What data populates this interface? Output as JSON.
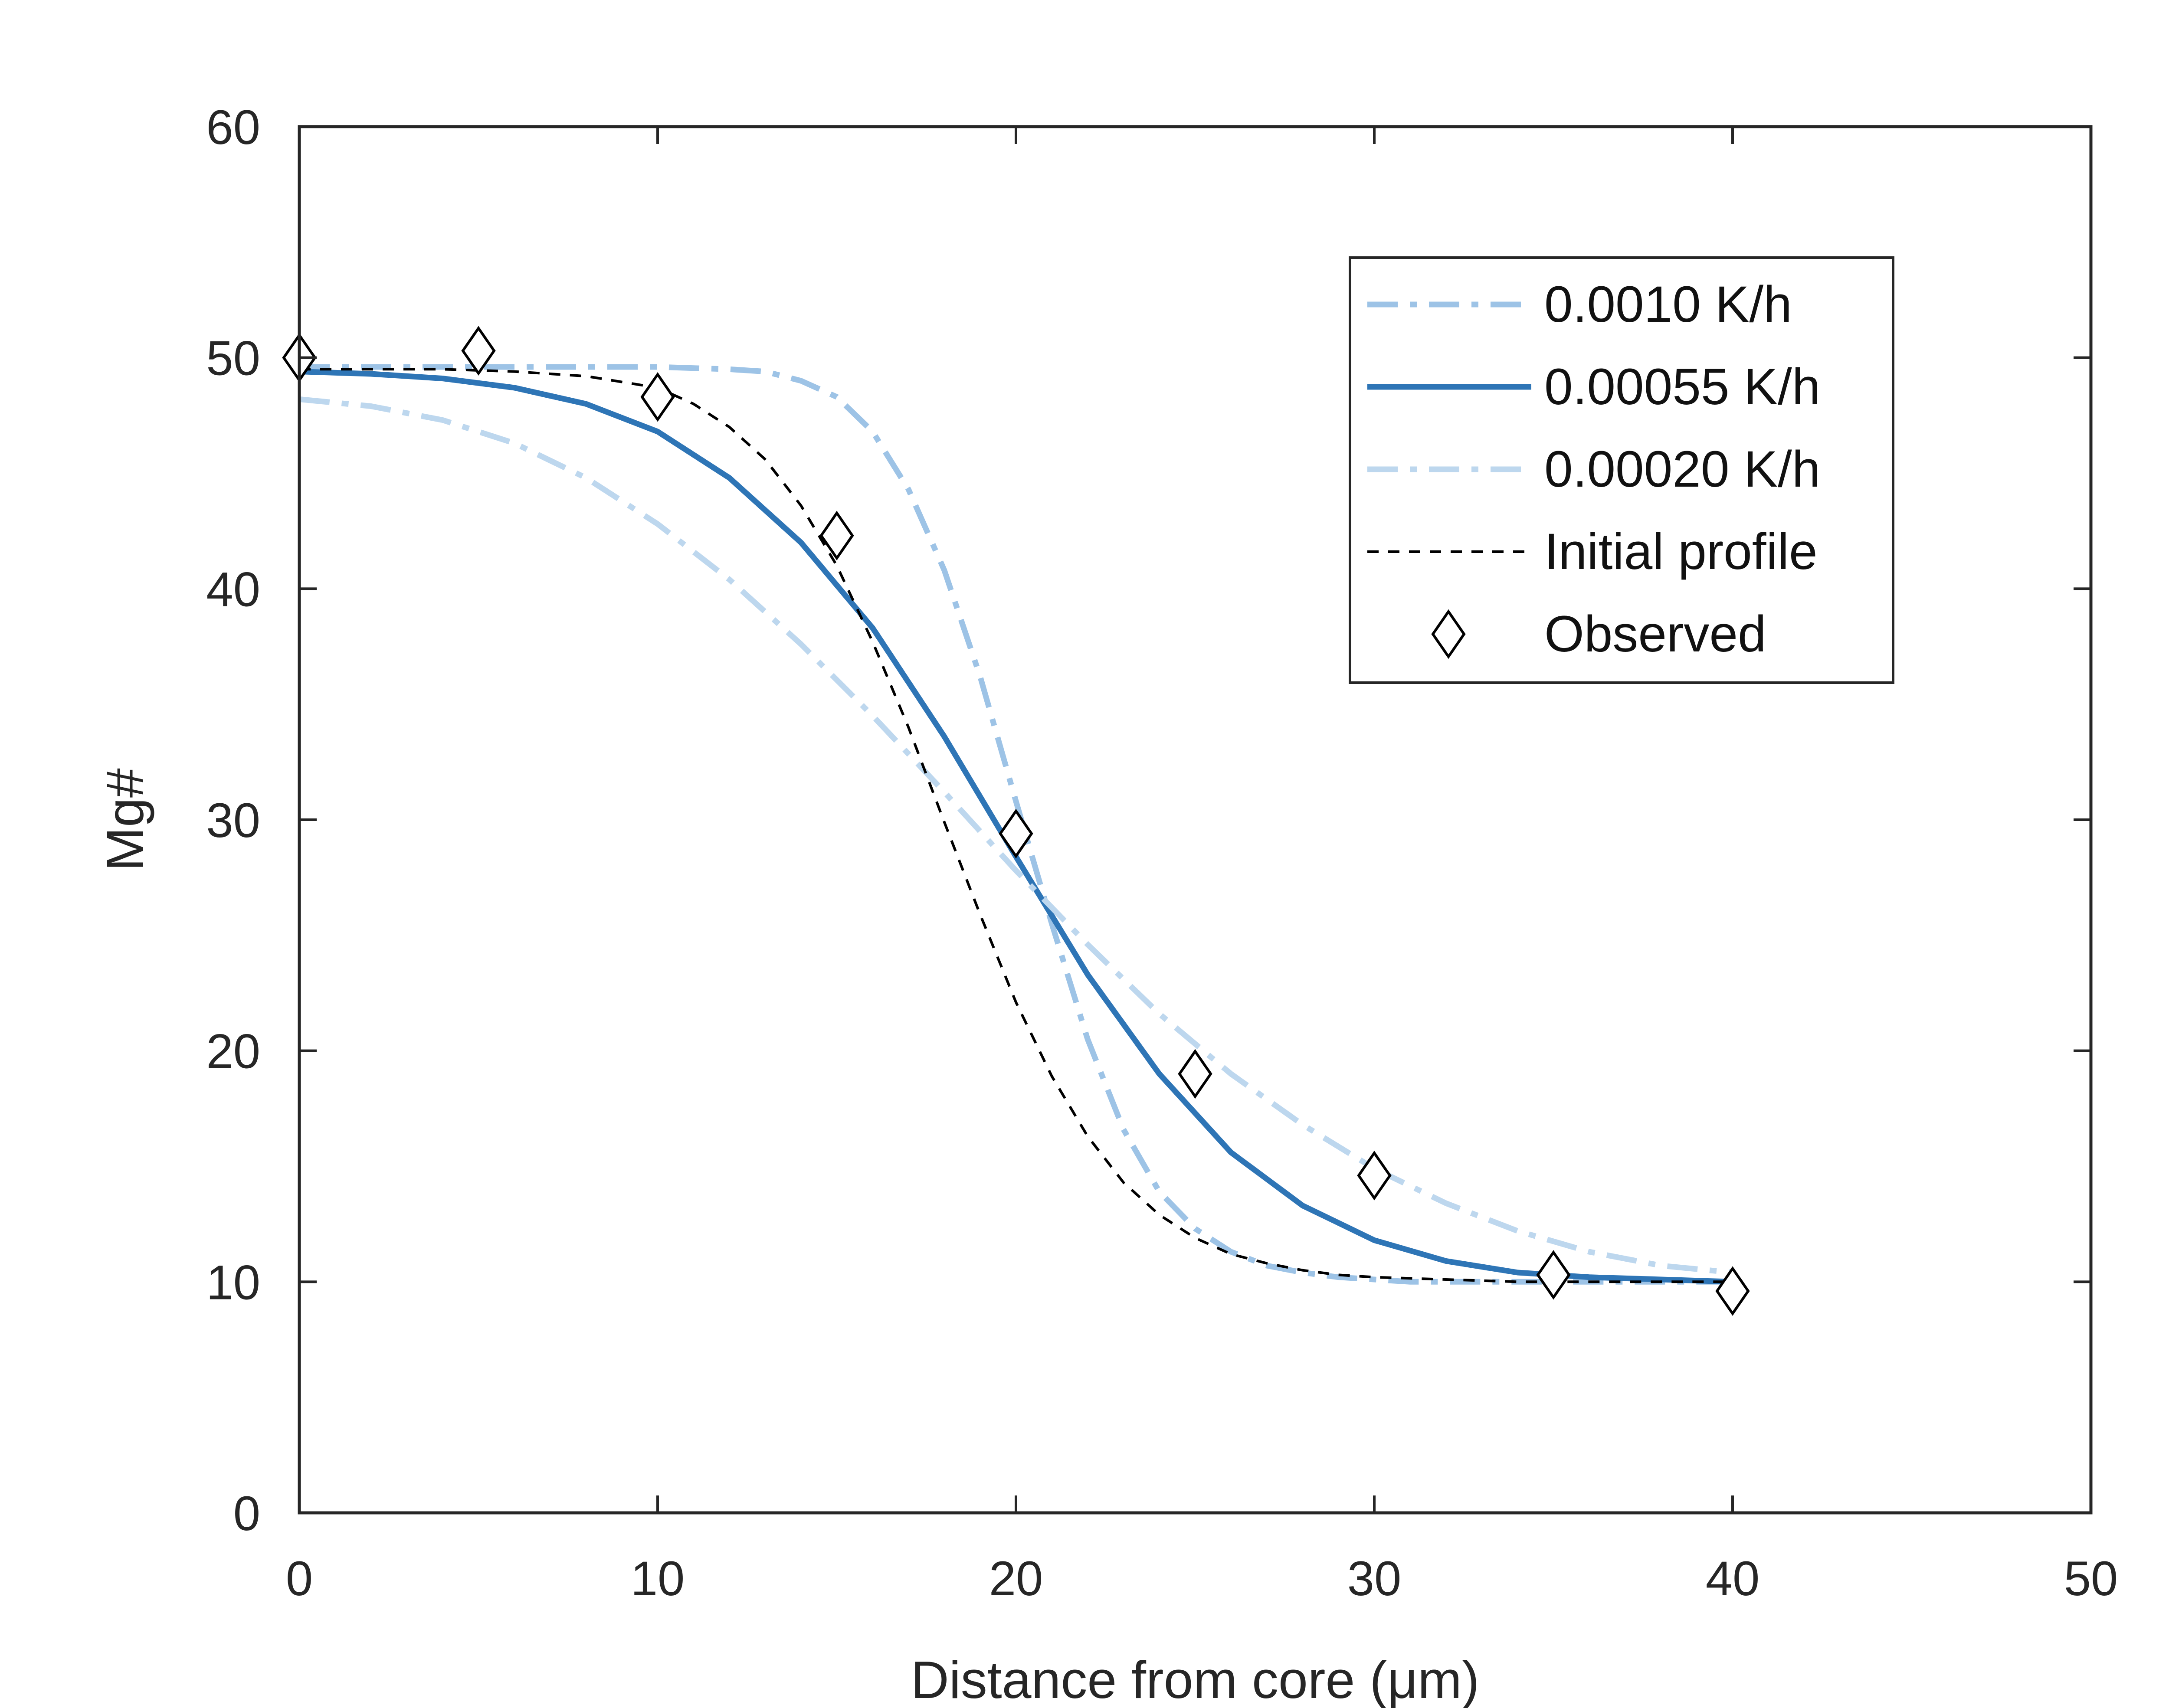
{
  "chart_data": {
    "type": "line",
    "xlabel": "Distance from core (μm)",
    "ylabel": "Mg#",
    "xlim": [
      0,
      50
    ],
    "ylim": [
      0,
      60
    ],
    "xticks": [
      0,
      10,
      20,
      30,
      40,
      50
    ],
    "yticks": [
      0,
      10,
      20,
      30,
      40,
      50,
      60
    ],
    "grid": false,
    "legend": "top-right",
    "series": [
      {
        "name": "0.0010 K/h",
        "style": "dash-dot",
        "color": "#9dc3e6",
        "x": [
          0,
          2,
          4,
          6,
          8,
          10,
          12,
          13,
          14,
          15,
          16,
          17,
          18,
          19,
          20,
          21,
          22,
          23,
          24,
          25,
          26,
          27,
          28,
          29,
          30,
          31,
          32,
          34,
          36,
          38,
          40
        ],
        "y": [
          49.6,
          49.6,
          49.6,
          49.6,
          49.6,
          49.6,
          49.5,
          49.4,
          49.0,
          48.3,
          46.8,
          44.3,
          40.8,
          36.2,
          30.8,
          25.5,
          20.5,
          16.6,
          13.9,
          12.3,
          11.3,
          10.7,
          10.4,
          10.2,
          10.1,
          10.0,
          10.0,
          10.0,
          10.0,
          10.0,
          10.0
        ]
      },
      {
        "name": "0.00055 K/h",
        "style": "solid",
        "color": "#2e75b6",
        "x": [
          0,
          2,
          4,
          6,
          8,
          10,
          12,
          14,
          16,
          18,
          20,
          22,
          24,
          26,
          28,
          30,
          32,
          34,
          36,
          38,
          40
        ],
        "y": [
          49.4,
          49.3,
          49.1,
          48.7,
          48.0,
          46.8,
          44.8,
          42.0,
          38.3,
          33.6,
          28.4,
          23.3,
          19.0,
          15.6,
          13.3,
          11.8,
          10.9,
          10.4,
          10.2,
          10.1,
          10.0
        ]
      },
      {
        "name": "0.00020 K/h",
        "style": "dash-dot",
        "color": "#bdd7ee",
        "x": [
          0,
          2,
          4,
          6,
          8,
          10,
          12,
          14,
          16,
          18,
          20,
          22,
          24,
          26,
          28,
          30,
          32,
          34,
          36,
          38,
          40
        ],
        "y": [
          48.2,
          47.9,
          47.3,
          46.3,
          44.8,
          42.8,
          40.4,
          37.6,
          34.5,
          31.2,
          27.8,
          24.6,
          21.6,
          19.0,
          16.8,
          14.9,
          13.4,
          12.2,
          11.3,
          10.7,
          10.4
        ]
      },
      {
        "name": "Initial profile",
        "style": "dashed",
        "color": "#000000",
        "x": [
          0,
          2,
          4,
          6,
          8,
          10,
          11,
          12,
          13,
          14,
          15,
          16,
          17,
          18,
          19,
          20,
          21,
          22,
          23,
          24,
          25,
          26,
          27,
          28,
          29,
          30,
          32,
          34,
          36,
          38,
          40
        ],
        "y": [
          49.5,
          49.5,
          49.5,
          49.4,
          49.2,
          48.7,
          48.0,
          47.0,
          45.6,
          43.6,
          41.0,
          37.7,
          34.0,
          29.9,
          25.9,
          22.1,
          18.9,
          16.3,
          14.3,
          12.9,
          11.9,
          11.2,
          10.8,
          10.5,
          10.3,
          10.2,
          10.1,
          10.0,
          10.0,
          10.0,
          10.0
        ]
      },
      {
        "name": "Observed",
        "style": "marker",
        "marker": "diamond",
        "color": "#000000",
        "x": [
          0,
          5,
          10,
          15,
          20,
          25,
          30,
          35,
          40
        ],
        "y": [
          50.0,
          50.3,
          48.3,
          42.3,
          29.4,
          19.0,
          14.6,
          10.3,
          9.6
        ]
      }
    ]
  }
}
